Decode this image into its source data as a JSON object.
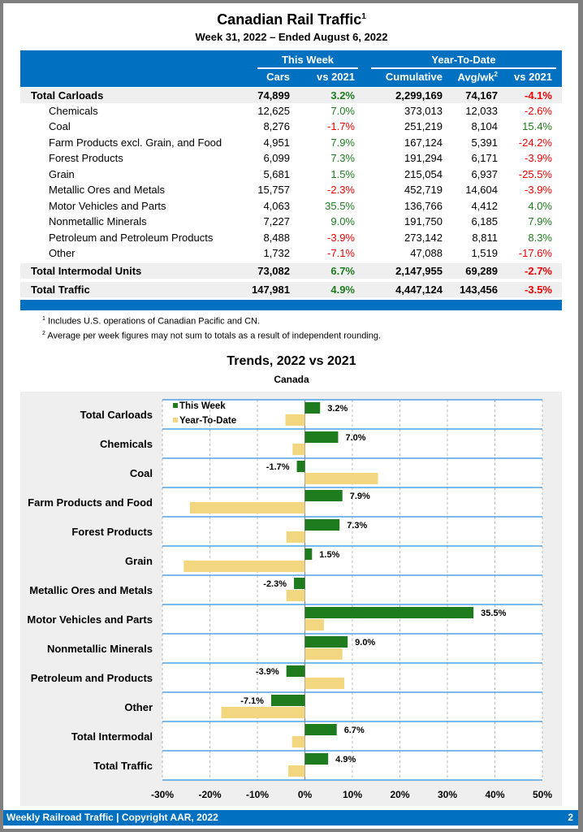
{
  "header": {
    "title": "Canadian Rail Traffic",
    "title_sup": "1",
    "subtitle": "Week 31, 2022 – Ended August 6, 2022"
  },
  "table": {
    "group_this_week": "This Week",
    "group_ytd": "Year-To-Date",
    "columns": [
      "Cars",
      "vs 2021",
      "Cumulative",
      "Avg/wk",
      "vs 2021"
    ],
    "avg_sup": "2",
    "rows": [
      {
        "label": "Total Carloads",
        "cars": "74,899",
        "vs": "3.2%",
        "cum": "2,299,169",
        "avg": "74,167",
        "ytdvs": "-4.1%",
        "total": true
      },
      {
        "label": "Chemicals",
        "cars": "12,625",
        "vs": "7.0%",
        "cum": "373,013",
        "avg": "12,033",
        "ytdvs": "-2.6%"
      },
      {
        "label": "Coal",
        "cars": "8,276",
        "vs": "-1.7%",
        "cum": "251,219",
        "avg": "8,104",
        "ytdvs": "15.4%"
      },
      {
        "label": "Farm Products excl. Grain, and Food",
        "cars": "4,951",
        "vs": "7.9%",
        "cum": "167,124",
        "avg": "5,391",
        "ytdvs": "-24.2%"
      },
      {
        "label": "Forest Products",
        "cars": "6,099",
        "vs": "7.3%",
        "cum": "191,294",
        "avg": "6,171",
        "ytdvs": "-3.9%"
      },
      {
        "label": "Grain",
        "cars": "5,681",
        "vs": "1.5%",
        "cum": "215,054",
        "avg": "6,937",
        "ytdvs": "-25.5%"
      },
      {
        "label": "Metallic Ores and Metals",
        "cars": "15,757",
        "vs": "-2.3%",
        "cum": "452,719",
        "avg": "14,604",
        "ytdvs": "-3.9%"
      },
      {
        "label": "Motor Vehicles and Parts",
        "cars": "4,063",
        "vs": "35.5%",
        "cum": "136,766",
        "avg": "4,412",
        "ytdvs": "4.0%"
      },
      {
        "label": "Nonmetallic Minerals",
        "cars": "7,227",
        "vs": "9.0%",
        "cum": "191,750",
        "avg": "6,185",
        "ytdvs": "7.9%"
      },
      {
        "label": "Petroleum and Petroleum Products",
        "cars": "8,488",
        "vs": "-3.9%",
        "cum": "273,142",
        "avg": "8,811",
        "ytdvs": "8.3%"
      },
      {
        "label": "Other",
        "cars": "1,732",
        "vs": "-7.1%",
        "cum": "47,088",
        "avg": "1,519",
        "ytdvs": "-17.6%"
      },
      {
        "label": "Total Intermodal Units",
        "cars": "73,082",
        "vs": "6.7%",
        "cum": "2,147,955",
        "avg": "69,289",
        "ytdvs": "-2.7%",
        "total": true
      },
      {
        "label": "Total Traffic",
        "cars": "147,981",
        "vs": "4.9%",
        "cum": "4,447,124",
        "avg": "143,456",
        "ytdvs": "-3.5%",
        "total": true
      }
    ]
  },
  "footnotes": [
    {
      "sup": "1",
      "text": "Includes U.S. operations of Canadian Pacific and CN."
    },
    {
      "sup": "2",
      "text": "Average per week figures may not sum to totals as a result of independent rounding."
    }
  ],
  "colors": {
    "blue": "#0070c0",
    "green": "#1e7b1e",
    "yellow": "#f2d680",
    "red": "#e00000"
  },
  "chart_data": {
    "type": "bar",
    "orientation": "horizontal",
    "title": "Trends, 2022 vs 2021",
    "subtitle": "Canada",
    "categories": [
      "Total Carloads",
      "Chemicals",
      "Coal",
      "Farm Products and Food",
      "Forest Products",
      "Grain",
      "Metallic Ores and Metals",
      "Motor Vehicles and Parts",
      "Nonmetallic Minerals",
      "Petroleum and Products",
      "Other",
      "Total Intermodal",
      "Total Traffic"
    ],
    "series": [
      {
        "name": "This Week",
        "values": [
          3.2,
          7.0,
          -1.7,
          7.9,
          7.3,
          1.5,
          -2.3,
          35.5,
          9.0,
          -3.9,
          -7.1,
          6.7,
          4.9
        ],
        "labels": [
          "3.2%",
          "7.0%",
          "-1.7%",
          "7.9%",
          "7.3%",
          "1.5%",
          "-2.3%",
          "35.5%",
          "9.0%",
          "-3.9%",
          "-7.1%",
          "6.7%",
          "4.9%"
        ]
      },
      {
        "name": "Year-To-Date",
        "values": [
          -4.1,
          -2.6,
          15.4,
          -24.2,
          -3.9,
          -25.5,
          -3.9,
          4.0,
          7.9,
          8.3,
          -17.6,
          -2.7,
          -3.5
        ]
      }
    ],
    "xlim": [
      -30,
      50
    ],
    "xticks": [
      "-30%",
      "-20%",
      "-10%",
      "0%",
      "10%",
      "20%",
      "30%",
      "40%",
      "50%"
    ],
    "legend": "top-left"
  },
  "footer": {
    "text": "Weekly Railroad Traffic | Copyright AAR, 2022",
    "page": "2"
  }
}
